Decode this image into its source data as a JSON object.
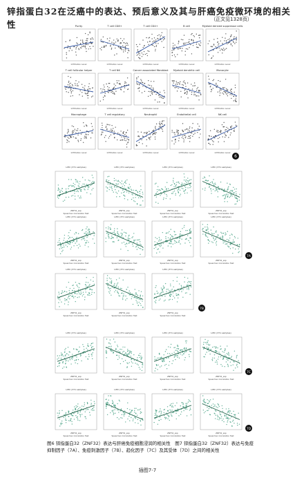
{
  "header": {
    "title": "锌指蛋白32在泛癌中的表达、预后意义及其与肝癌免疫微环境的相关性",
    "subtitle": "（正文见1328页）"
  },
  "figure6": {
    "label": "6",
    "x_label": "Infiltration Level",
    "panels": [
      "Purity",
      "T cell CD8+",
      "T cell CD4+",
      "B cell",
      "Myeloid derived suppressor cells",
      "T cell follicular helper",
      "T cell NK",
      "Cancer associated fibroblast",
      "Myeloid dendritic cell",
      "Monocyte",
      "Macrophage",
      "T cell regulatory",
      "Neutrophil",
      "Endothelial cell",
      "NK cell"
    ]
  },
  "figure7": {
    "panel_title": "LIHC (371 samples)",
    "x_label": "ZNF32_exp",
    "test": "Spearman Correlation Test",
    "groups": [
      {
        "label": "7A",
        "count": 8
      },
      {
        "label": "7B",
        "count": 3
      },
      {
        "label": "7C",
        "count": 4
      },
      {
        "label": "7D",
        "count": 4
      }
    ]
  },
  "caption": "图6 锌指蛋白32（ZNF32）表达与肝癌免疫细胞浸润的相关性　图7 锌指蛋白32（ZNF32）表达与免疫抑制因子（7A）、免疫刺激因子（7B）、趋化因子（7C）及其受体（7D）之间的相关性",
  "page_number": "插图7-7"
}
